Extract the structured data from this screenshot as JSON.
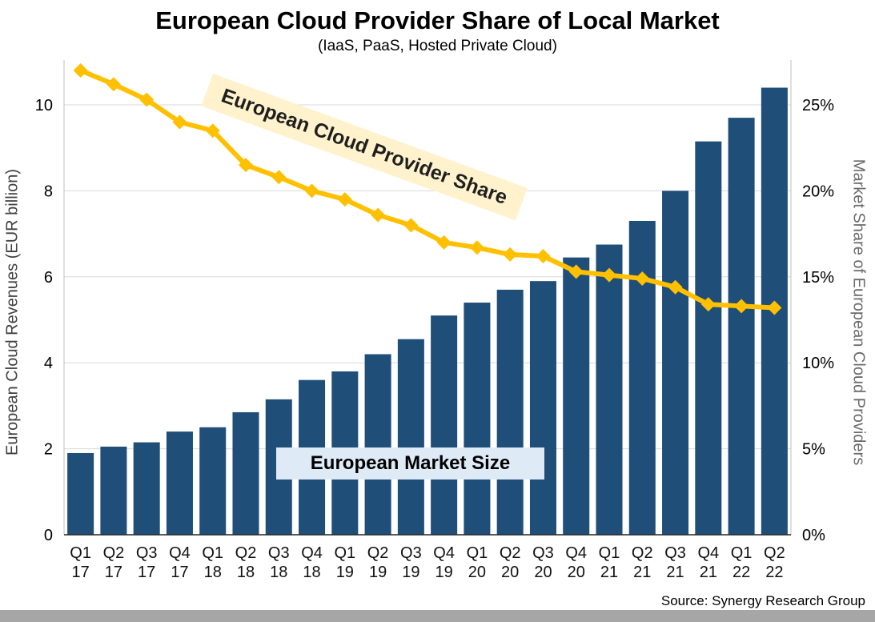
{
  "page": {
    "title": "European Cloud Provider Share of Local Market",
    "subtitle": "(IaaS, PaaS, Hosted Private Cloud)",
    "left_axis_title": "European Cloud Revenues (EUR billion)",
    "right_axis_title": "Market Share of European Cloud Providers",
    "line_annotation": "European Cloud Provider Share",
    "bar_annotation": "European Market Size",
    "source": "Source: Synergy Research Group"
  },
  "chart_data": {
    "type": "combo-bar-line",
    "title": "European Cloud Provider Share of Local Market",
    "subtitle": "(IaaS, PaaS, Hosted Private Cloud)",
    "source": "Source: Synergy Research Group",
    "categories": [
      {
        "quarter": "Q1",
        "year": "17"
      },
      {
        "quarter": "Q2",
        "year": "17"
      },
      {
        "quarter": "Q3",
        "year": "17"
      },
      {
        "quarter": "Q4",
        "year": "17"
      },
      {
        "quarter": "Q1",
        "year": "18"
      },
      {
        "quarter": "Q2",
        "year": "18"
      },
      {
        "quarter": "Q3",
        "year": "18"
      },
      {
        "quarter": "Q4",
        "year": "18"
      },
      {
        "quarter": "Q1",
        "year": "19"
      },
      {
        "quarter": "Q2",
        "year": "19"
      },
      {
        "quarter": "Q3",
        "year": "19"
      },
      {
        "quarter": "Q4",
        "year": "19"
      },
      {
        "quarter": "Q1",
        "year": "20"
      },
      {
        "quarter": "Q2",
        "year": "20"
      },
      {
        "quarter": "Q3",
        "year": "20"
      },
      {
        "quarter": "Q4",
        "year": "20"
      },
      {
        "quarter": "Q1",
        "year": "21"
      },
      {
        "quarter": "Q2",
        "year": "21"
      },
      {
        "quarter": "Q3",
        "year": "21"
      },
      {
        "quarter": "Q4",
        "year": "21"
      },
      {
        "quarter": "Q1",
        "year": "22"
      },
      {
        "quarter": "Q2",
        "year": "22"
      }
    ],
    "series": [
      {
        "name": "European Market Size",
        "type": "bar",
        "axis": "left",
        "unit": "EUR billion",
        "color": "#1F4E79",
        "values": [
          1.9,
          2.05,
          2.15,
          2.4,
          2.5,
          2.85,
          3.15,
          3.6,
          3.8,
          4.2,
          4.55,
          5.1,
          5.4,
          5.7,
          5.9,
          6.45,
          6.75,
          7.3,
          8.0,
          9.15,
          9.7,
          10.4
        ]
      },
      {
        "name": "European Cloud Provider Share",
        "type": "line",
        "axis": "right",
        "unit": "percent",
        "color": "#FFC000",
        "values": [
          27.0,
          26.2,
          25.3,
          24.0,
          23.5,
          21.5,
          20.8,
          20.0,
          19.5,
          18.6,
          18.0,
          17.0,
          16.7,
          16.3,
          16.2,
          15.3,
          15.1,
          14.9,
          14.4,
          13.4,
          13.3,
          13.2
        ]
      }
    ],
    "left_axis": {
      "title": "European Cloud Revenues (EUR billion)",
      "min": 0,
      "max": 10,
      "ticks": [
        0,
        2,
        4,
        6,
        8,
        10
      ]
    },
    "right_axis": {
      "title": "Market Share of European Cloud Providers",
      "min": 0,
      "max": 25,
      "tick_labels": [
        "0%",
        "5%",
        "10%",
        "15%",
        "20%",
        "25%"
      ],
      "tick_values": [
        0,
        5,
        10,
        15,
        20,
        25
      ]
    },
    "grid": "horizontal",
    "legend": "inline-annotations"
  }
}
